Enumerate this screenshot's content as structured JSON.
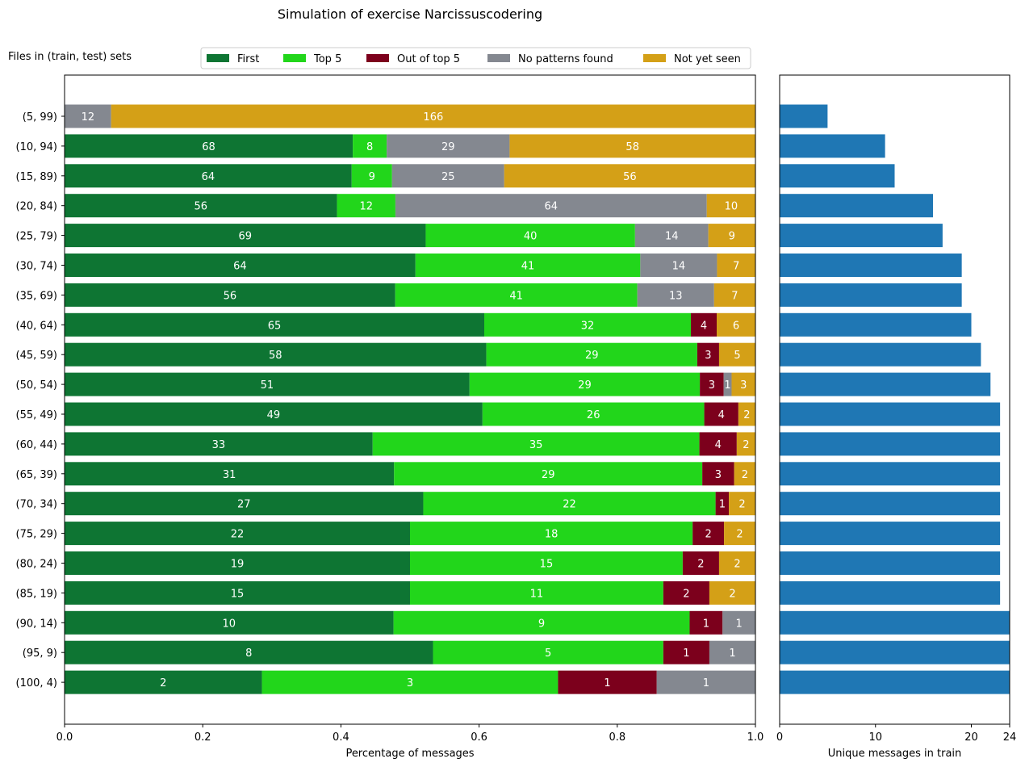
{
  "title": "Simulation of exercise Narcissuscodering",
  "ylabel_title": "Files in (train, test) sets",
  "legend": {
    "placement": "top",
    "entries": [
      {
        "label": "First",
        "color": "#0e7533"
      },
      {
        "label": "Top 5",
        "color": "#22d61b"
      },
      {
        "label": "Out of top 5",
        "color": "#7c001c"
      },
      {
        "label": "No patterns found",
        "color": "#848890"
      },
      {
        "label": "Not yet seen",
        "color": "#d4a017"
      }
    ]
  },
  "chart_data": [
    {
      "type": "bar",
      "orientation": "horizontal",
      "stacked": true,
      "normalized": true,
      "xlabel": "Percentage of messages",
      "xlim": [
        0,
        1
      ],
      "xticks": [
        "0.0",
        "0.2",
        "0.4",
        "0.6",
        "0.8",
        "1.0"
      ],
      "categories": [
        "(5, 99)",
        "(10, 94)",
        "(15, 89)",
        "(20, 84)",
        "(25, 79)",
        "(30, 74)",
        "(35, 69)",
        "(40, 64)",
        "(45, 59)",
        "(50, 54)",
        "(55, 49)",
        "(60, 44)",
        "(65, 39)",
        "(70, 34)",
        "(75, 29)",
        "(80, 24)",
        "(85, 19)",
        "(90, 14)",
        "(95, 9)",
        "(100, 4)"
      ],
      "series": [
        {
          "name": "First",
          "color": "#0e7533",
          "values": [
            0,
            68,
            64,
            56,
            69,
            64,
            56,
            65,
            58,
            51,
            49,
            33,
            31,
            27,
            22,
            19,
            15,
            10,
            8,
            2
          ]
        },
        {
          "name": "Top 5",
          "color": "#22d61b",
          "values": [
            0,
            8,
            9,
            12,
            40,
            41,
            41,
            32,
            29,
            29,
            26,
            35,
            29,
            22,
            18,
            15,
            11,
            9,
            5,
            3
          ]
        },
        {
          "name": "Out of top 5",
          "color": "#7c001c",
          "values": [
            0,
            0,
            0,
            0,
            0,
            0,
            0,
            4,
            3,
            3,
            4,
            4,
            3,
            1,
            2,
            2,
            2,
            1,
            1,
            1
          ]
        },
        {
          "name": "No patterns found",
          "color": "#848890",
          "values": [
            12,
            29,
            25,
            64,
            14,
            14,
            13,
            0,
            0,
            1,
            0,
            0,
            0,
            0,
            0,
            0,
            0,
            1,
            1,
            1
          ]
        },
        {
          "name": "Not yet seen",
          "color": "#d4a017",
          "values": [
            166,
            58,
            56,
            10,
            9,
            7,
            7,
            6,
            5,
            3,
            2,
            2,
            2,
            2,
            2,
            2,
            2,
            0,
            0,
            0
          ]
        }
      ]
    },
    {
      "type": "bar",
      "orientation": "horizontal",
      "xlabel": "Unique messages in train",
      "xlim": [
        0,
        24
      ],
      "xticks": [
        "0",
        "10",
        "20",
        "24"
      ],
      "xtick_values": [
        0,
        10,
        20,
        24
      ],
      "color": "#1f77b4",
      "categories": [
        "(5, 99)",
        "(10, 94)",
        "(15, 89)",
        "(20, 84)",
        "(25, 79)",
        "(30, 74)",
        "(35, 69)",
        "(40, 64)",
        "(45, 59)",
        "(50, 54)",
        "(55, 49)",
        "(60, 44)",
        "(65, 39)",
        "(70, 34)",
        "(75, 29)",
        "(80, 24)",
        "(85, 19)",
        "(90, 14)",
        "(95, 9)",
        "(100, 4)"
      ],
      "values": [
        5,
        11,
        12,
        16,
        17,
        19,
        19,
        20,
        21,
        22,
        23,
        23,
        23,
        23,
        23,
        23,
        23,
        24,
        24,
        24
      ]
    }
  ]
}
